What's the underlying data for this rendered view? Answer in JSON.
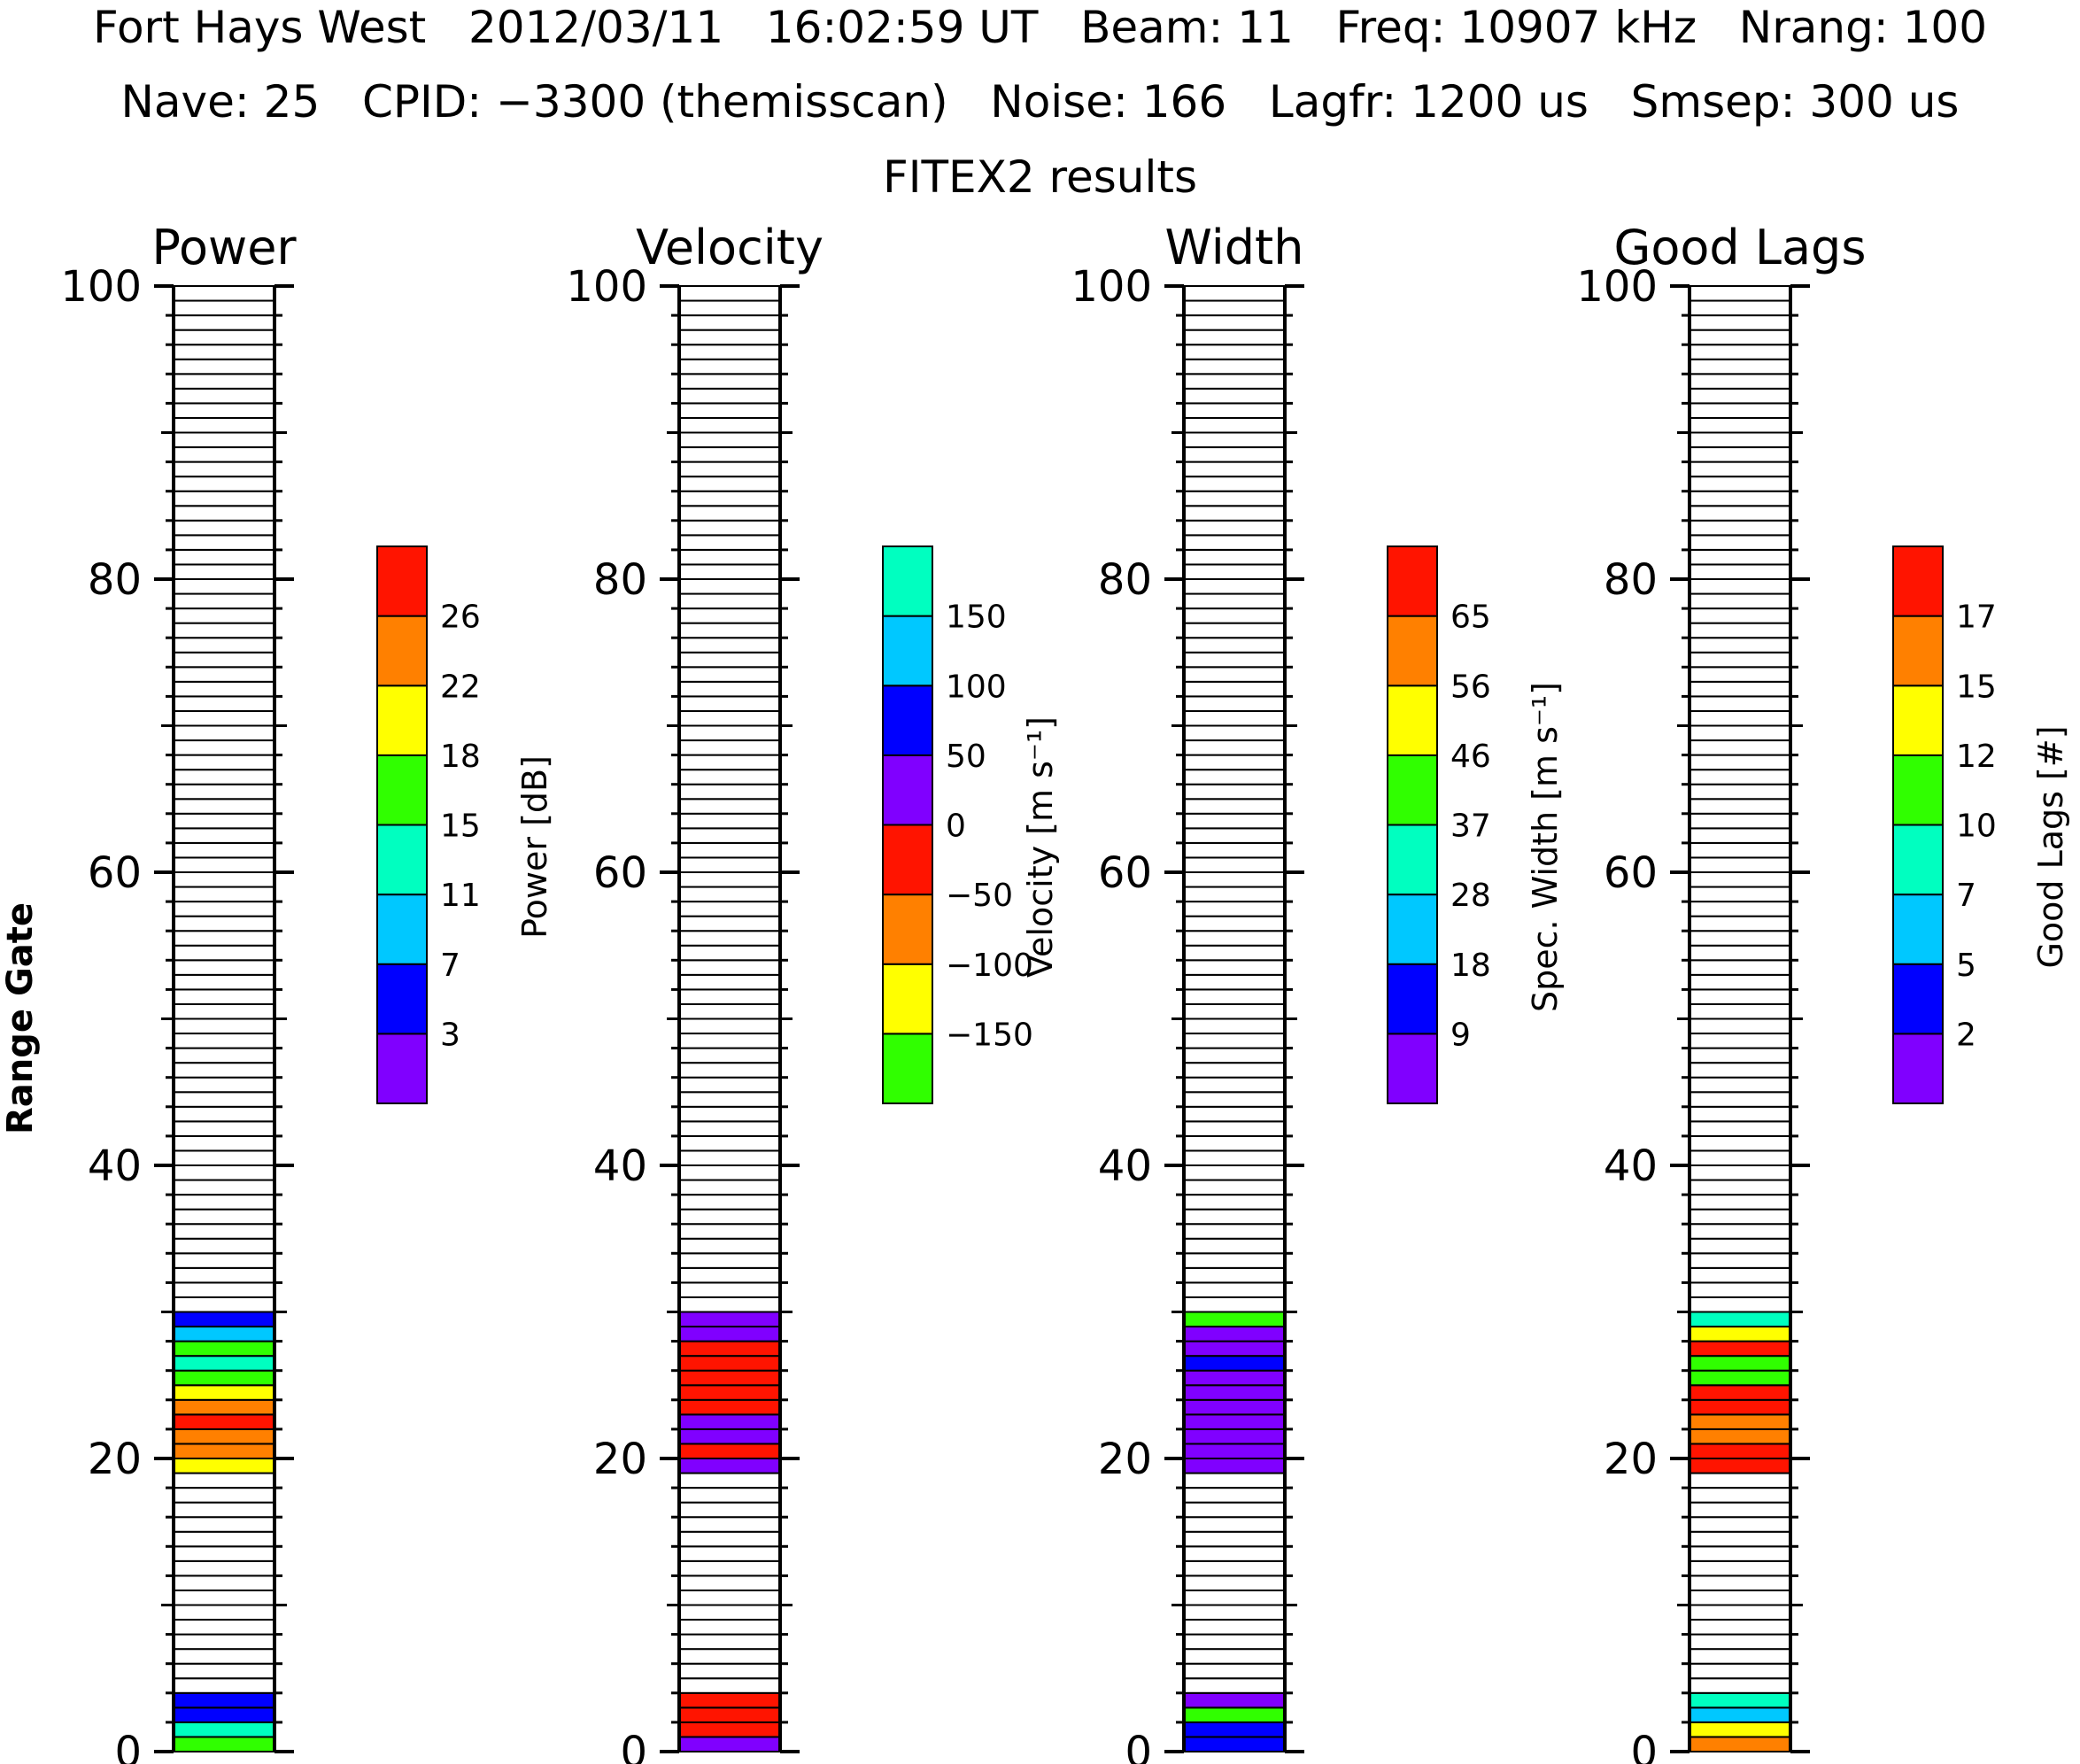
{
  "header": {
    "line1": "Fort Hays West   2012/03/11   16:02:59 UT   Beam: 11   Freq: 10907 kHz   Nrang: 100",
    "line2": "Nave: 25   CPID: −3300 (themisscan)   Noise: 166   Lagfr: 1200 us   Smsep: 300 us",
    "line3": "FITEX2 results"
  },
  "colors": {
    "purple": "#8000ff",
    "blue": "#0000ff",
    "sky": "#00c8ff",
    "teal": "#00ffc0",
    "green": "#30ff00",
    "yellow": "#ffff00",
    "orange": "#ff8000",
    "red": "#ff1400"
  },
  "chart_data": {
    "type": "heatmap",
    "ylabel": "Range Gate",
    "ylim": [
      0,
      100
    ],
    "yticks": [
      "0",
      "20",
      "40",
      "60",
      "80",
      "100"
    ],
    "panels": [
      {
        "title": "Power",
        "colorbar": {
          "title": "Power [dB]",
          "labels": [
            "3",
            "7",
            "11",
            "15",
            "18",
            "22",
            "26"
          ],
          "colors": [
            "purple",
            "blue",
            "sky",
            "teal",
            "green",
            "yellow",
            "orange",
            "red"
          ]
        },
        "gates": {
          "0": "green",
          "1": "teal",
          "2": "blue",
          "3": "blue",
          "19": "yellow",
          "20": "orange",
          "21": "orange",
          "22": "red",
          "23": "orange",
          "24": "yellow",
          "25": "green",
          "26": "teal",
          "27": "green",
          "28": "sky",
          "29": "blue"
        }
      },
      {
        "title": "Velocity",
        "colorbar": {
          "title": "Velocity [m s⁻¹]",
          "labels": [
            "−150",
            "−100",
            "−50",
            "0",
            "50",
            "100",
            "150"
          ],
          "colors": [
            "green",
            "yellow",
            "orange",
            "red",
            "purple",
            "blue",
            "sky",
            "teal"
          ]
        },
        "gates": {
          "0": "purple",
          "1": "red",
          "2": "red",
          "3": "red",
          "19": "purple",
          "20": "red",
          "21": "purple",
          "22": "purple",
          "23": "red",
          "24": "red",
          "25": "red",
          "26": "red",
          "27": "red",
          "28": "purple",
          "29": "purple"
        }
      },
      {
        "title": "Width",
        "colorbar": {
          "title": "Spec. Width [m s⁻¹]",
          "labels": [
            "9",
            "18",
            "28",
            "37",
            "46",
            "56",
            "65"
          ],
          "colors": [
            "purple",
            "blue",
            "sky",
            "teal",
            "green",
            "yellow",
            "orange",
            "red"
          ]
        },
        "gates": {
          "0": "blue",
          "1": "blue",
          "2": "green",
          "3": "purple",
          "19": "purple",
          "20": "purple",
          "21": "purple",
          "22": "purple",
          "23": "purple",
          "24": "purple",
          "25": "purple",
          "26": "blue",
          "27": "purple",
          "28": "purple",
          "29": "green"
        }
      },
      {
        "title": "Good Lags",
        "colorbar": {
          "title": "Good Lags [#]",
          "labels": [
            "2",
            "5",
            "7",
            "10",
            "12",
            "15",
            "17"
          ],
          "colors": [
            "purple",
            "blue",
            "sky",
            "teal",
            "green",
            "yellow",
            "orange",
            "red"
          ]
        },
        "gates": {
          "0": "orange",
          "1": "yellow",
          "2": "sky",
          "3": "teal",
          "19": "red",
          "20": "red",
          "21": "orange",
          "22": "orange",
          "23": "red",
          "24": "red",
          "25": "green",
          "26": "green",
          "27": "red",
          "28": "yellow",
          "29": "teal"
        }
      }
    ]
  }
}
